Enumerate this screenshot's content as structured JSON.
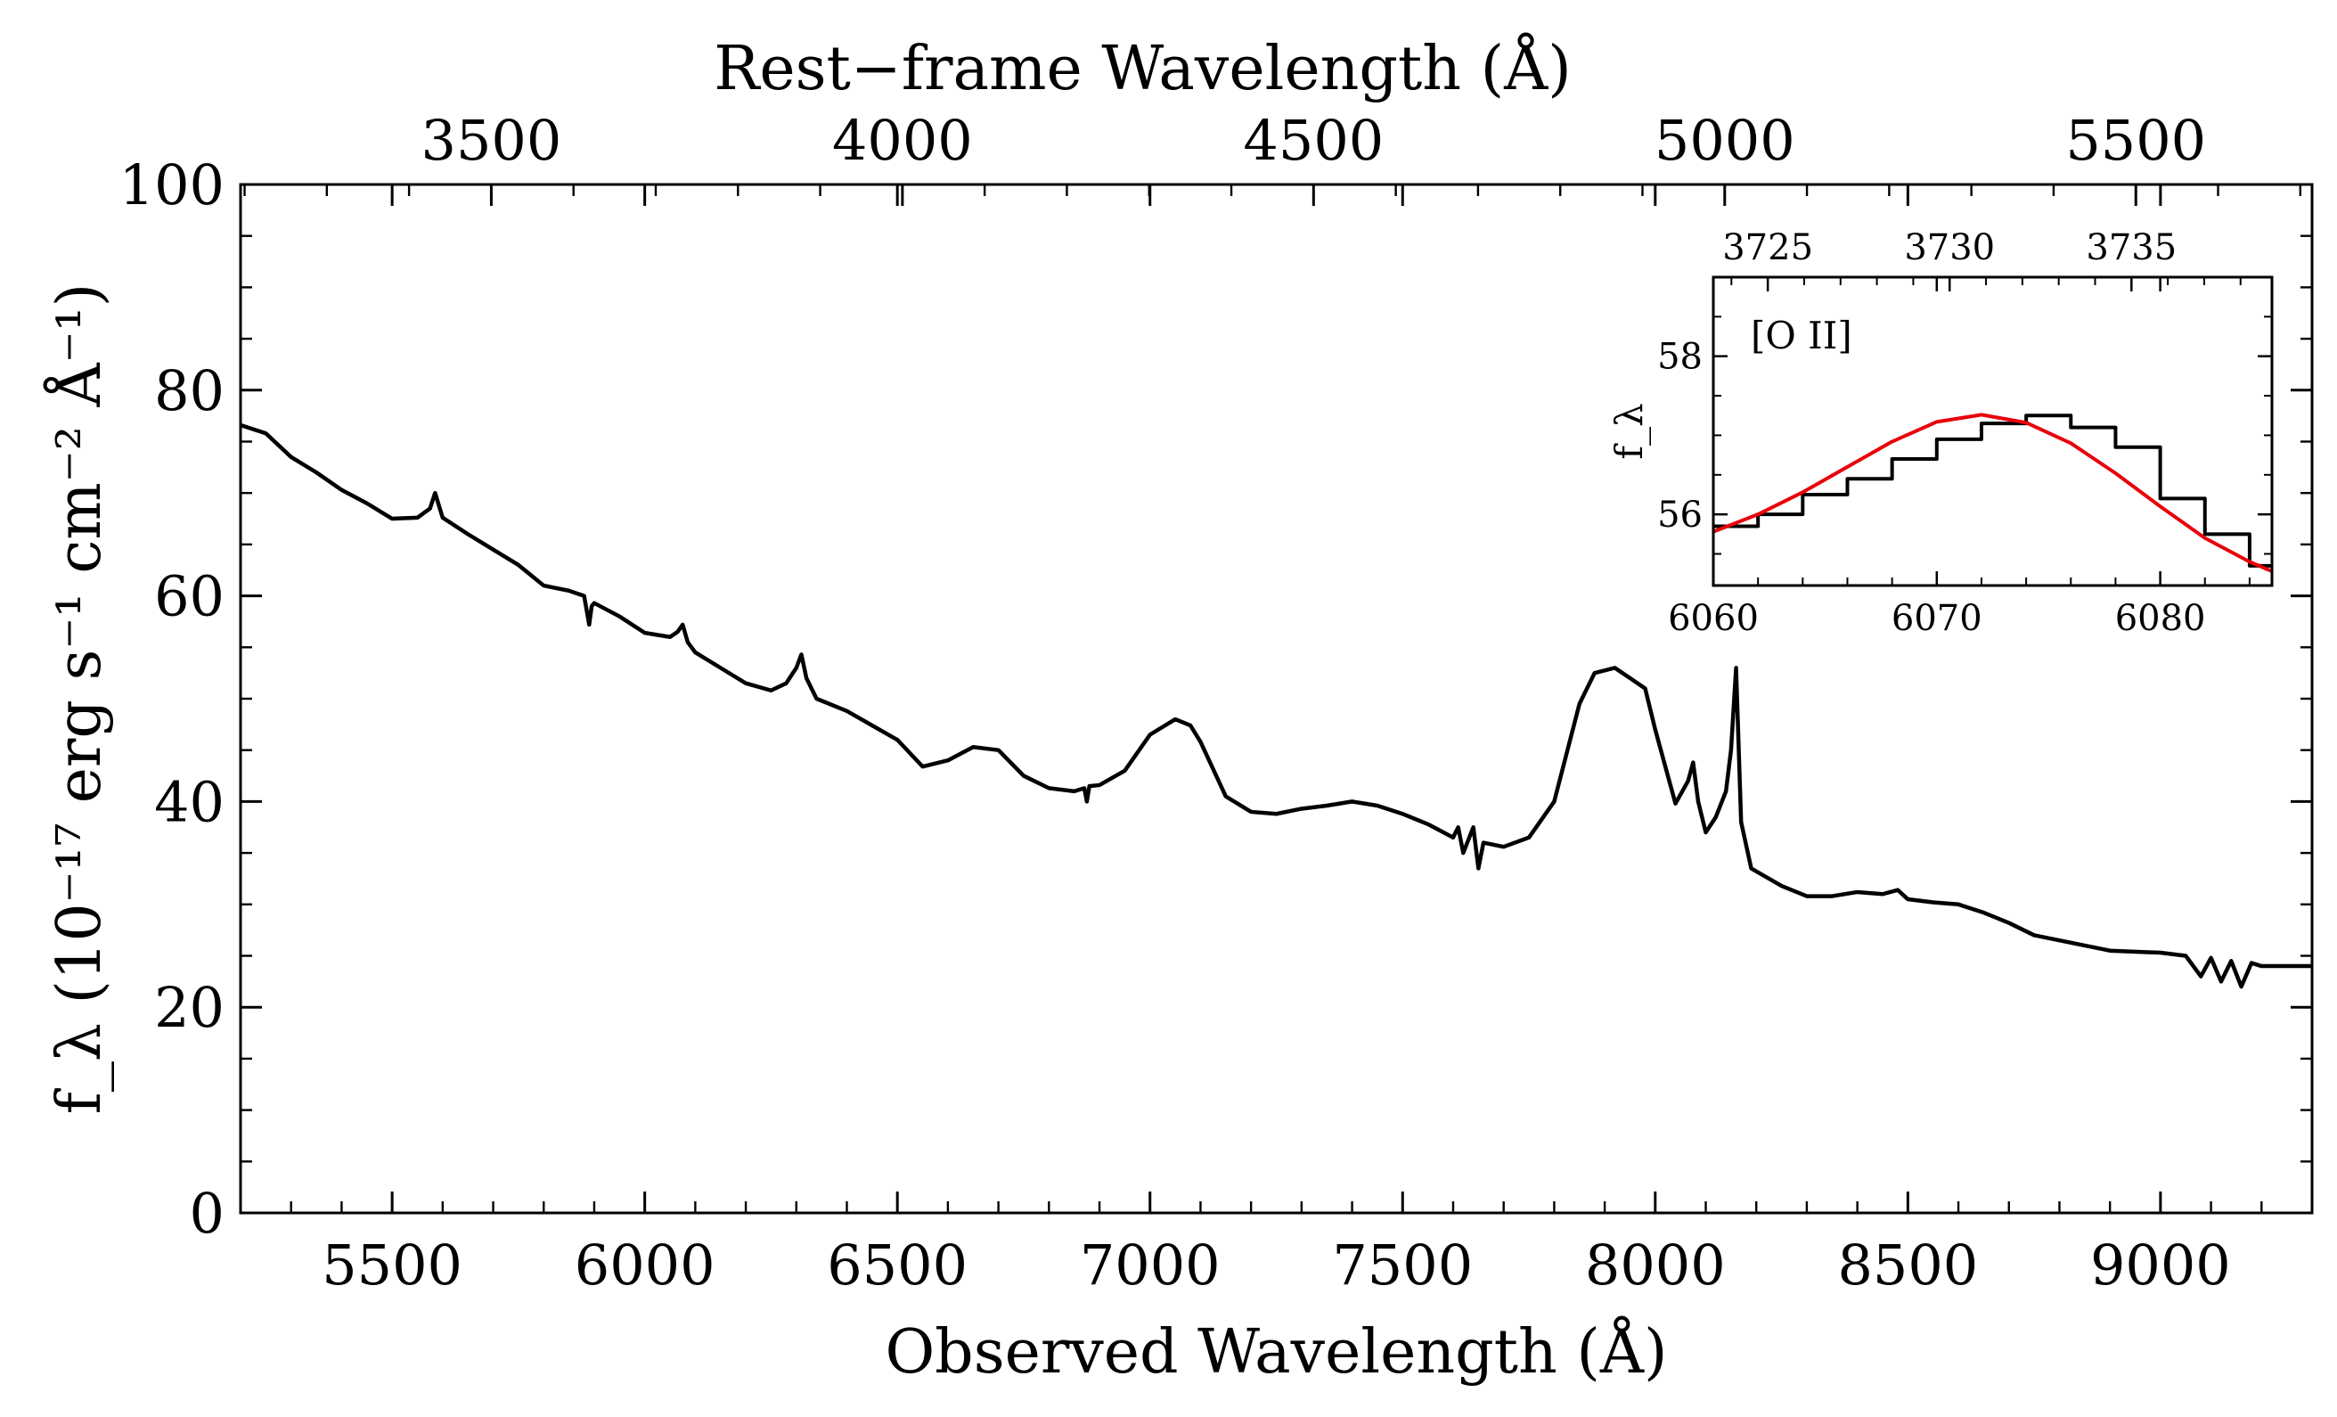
{
  "chart_data": [
    {
      "type": "line",
      "xlabel": "Observed Wavelength (Å)",
      "ylabel": "f_λ (10⁻¹⁷ erg s⁻¹ cm⁻² Å⁻¹)",
      "top_xlabel": "Rest−frame Wavelength (Å)",
      "xlim": [
        5200,
        9300
      ],
      "ylim": [
        0,
        100
      ],
      "x_ticks": [
        5500,
        6000,
        6500,
        7000,
        7500,
        8000,
        8500,
        9000
      ],
      "y_ticks": [
        0,
        20,
        40,
        60,
        80,
        100
      ],
      "top_x_ticks": [
        3500,
        4000,
        4500,
        5000,
        5500
      ],
      "top_x_scale": 1.6275,
      "x_tick_labels": [
        "5500",
        "6000",
        "6500",
        "7000",
        "7500",
        "8000",
        "8500",
        "9000"
      ],
      "y_tick_labels": [
        "0",
        "20",
        "40",
        "60",
        "80",
        "100"
      ],
      "top_x_tick_labels": [
        "3500",
        "4000",
        "4500",
        "5000",
        "5500"
      ],
      "grid": false,
      "series": [
        {
          "color": "#000000",
          "x": [
            5200,
            5250,
            5300,
            5350,
            5400,
            5450,
            5500,
            5550,
            5575,
            5585,
            5600,
            5650,
            5700,
            5750,
            5800,
            5850,
            5880,
            5890,
            5895,
            5900,
            5950,
            6000,
            6050,
            6065,
            6075,
            6085,
            6100,
            6150,
            6200,
            6250,
            6280,
            6300,
            6310,
            6320,
            6340,
            6400,
            6450,
            6500,
            6550,
            6600,
            6650,
            6700,
            6750,
            6800,
            6850,
            6870,
            6875,
            6880,
            6900,
            6950,
            7000,
            7050,
            7080,
            7100,
            7150,
            7200,
            7250,
            7300,
            7350,
            7400,
            7450,
            7500,
            7550,
            7600,
            7610,
            7620,
            7640,
            7650,
            7660,
            7700,
            7750,
            7800,
            7850,
            7880,
            7920,
            7950,
            7980,
            8000,
            8040,
            8065,
            8075,
            8085,
            8100,
            8120,
            8140,
            8150,
            8160,
            8170,
            8190,
            8250,
            8300,
            8350,
            8400,
            8450,
            8480,
            8500,
            8550,
            8600,
            8650,
            8700,
            8750,
            8800,
            8850,
            8900,
            9000,
            9050,
            9080,
            9100,
            9120,
            9140,
            9160,
            9180,
            9200,
            9250,
            9300
          ],
          "y": [
            76.6,
            75.8,
            73.5,
            72.0,
            70.3,
            69.0,
            67.5,
            67.6,
            68.5,
            70.0,
            67.6,
            66.0,
            64.5,
            63.0,
            61.0,
            60.5,
            60.0,
            57.2,
            59.0,
            59.3,
            58.0,
            56.4,
            56.0,
            56.5,
            57.2,
            55.5,
            54.5,
            53.0,
            51.5,
            50.8,
            51.5,
            53.0,
            54.3,
            52.0,
            50.0,
            48.8,
            47.4,
            46.0,
            43.4,
            44.0,
            45.3,
            45.0,
            42.5,
            41.3,
            41.0,
            41.3,
            40.0,
            41.5,
            41.6,
            43.0,
            46.5,
            48.0,
            47.4,
            45.8,
            40.5,
            39.0,
            38.8,
            39.3,
            39.6,
            40.0,
            39.6,
            38.8,
            37.8,
            36.5,
            37.5,
            35.0,
            37.5,
            33.5,
            36.0,
            35.6,
            36.5,
            40.0,
            49.5,
            52.5,
            53.0,
            52.0,
            51.0,
            47.0,
            39.8,
            42.0,
            43.8,
            40.0,
            37.0,
            38.5,
            41.0,
            45.0,
            53.0,
            38.0,
            33.5,
            31.8,
            30.8,
            30.8,
            31.2,
            31.0,
            31.4,
            30.5,
            30.2,
            30.0,
            29.2,
            28.2,
            27.0,
            26.5,
            26.0,
            25.5,
            25.3,
            25.0,
            23.0,
            24.8,
            22.5,
            24.5,
            22.0,
            24.3,
            24.0,
            24.0,
            24.0
          ]
        }
      ]
    },
    {
      "type": "line",
      "title": "[O II]",
      "ylabel": "f_λ",
      "xlim": [
        6060,
        6085
      ],
      "ylim": [
        55.1,
        59.0
      ],
      "x_ticks": [
        6060,
        6070,
        6080
      ],
      "y_ticks": [
        56,
        58
      ],
      "top_x_ticks": [
        3725,
        3730,
        3735
      ],
      "top_x_scale": 1.6275,
      "x_tick_labels": [
        "6060",
        "6070",
        "6080"
      ],
      "y_tick_labels": [
        "56",
        "58"
      ],
      "top_x_tick_labels": [
        "3725",
        "3730",
        "3735"
      ],
      "series": [
        {
          "style": "steps",
          "color": "#000000",
          "x": [
            6060,
            6062,
            6064,
            6066,
            6068,
            6070,
            6072,
            6074,
            6076,
            6078,
            6080,
            6082,
            6084,
            6085
          ],
          "y": [
            55.85,
            56.0,
            56.25,
            56.45,
            56.7,
            56.95,
            57.15,
            57.25,
            57.1,
            56.85,
            56.2,
            55.75,
            55.35,
            55.35
          ]
        },
        {
          "style": "smooth",
          "color": "#e8000b",
          "x": [
            6060,
            6062,
            6064,
            6066,
            6068,
            6070,
            6072,
            6074,
            6076,
            6078,
            6080,
            6082,
            6084,
            6085
          ],
          "y": [
            55.78,
            56.0,
            56.28,
            56.6,
            56.92,
            57.17,
            57.26,
            57.16,
            56.9,
            56.52,
            56.1,
            55.7,
            55.4,
            55.28
          ]
        }
      ]
    }
  ]
}
